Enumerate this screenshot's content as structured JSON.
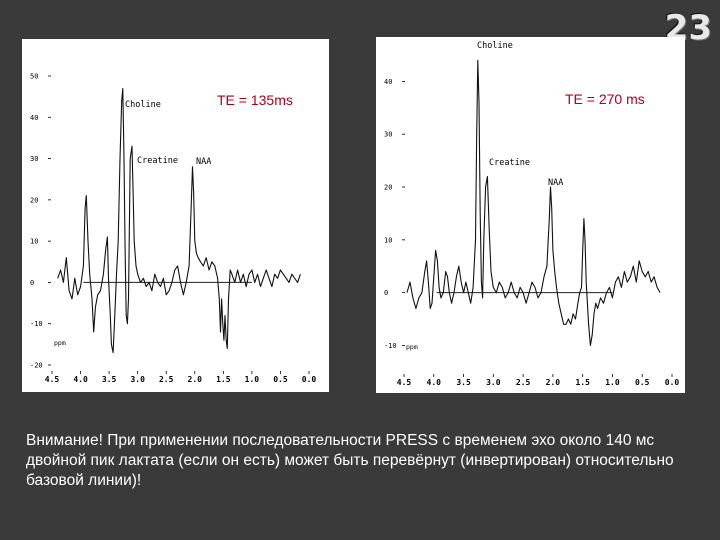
{
  "page_number": "23",
  "note": "Внимание! При применении последовательности PRESS с временем эхо около 140 мс двойной пик лактата (если он есть) может быть перевёрнут (инвертирован) относительно базовой линии)!",
  "chart_data": [
    {
      "type": "line",
      "te_label": "TE = 135ms",
      "unit_label": "ppm",
      "x_ticks": [
        "4.5",
        "4.0",
        "3.5",
        "3.0",
        "2.5",
        "2.0",
        "1.5",
        "1.0",
        "0.5",
        "0.0"
      ],
      "y_ticks": [
        "50",
        "40",
        "30",
        "20",
        "10",
        "0",
        "-10",
        "-20"
      ],
      "xlim": [
        4.5,
        0.0
      ],
      "ylim": [
        -20,
        50
      ],
      "peaks": [
        {
          "label": "Choline",
          "x": 3.22,
          "y": 47
        },
        {
          "label": "Creatine",
          "x": 3.03,
          "y": 33
        },
        {
          "label": "NAA",
          "x": 2.02,
          "y": 28
        }
      ],
      "baseline_y": 0,
      "spectrum": [
        [
          4.4,
          1
        ],
        [
          4.35,
          3
        ],
        [
          4.3,
          0
        ],
        [
          4.25,
          6
        ],
        [
          4.2,
          -2
        ],
        [
          4.15,
          -4
        ],
        [
          4.1,
          1
        ],
        [
          4.05,
          -3
        ],
        [
          4.0,
          -1
        ],
        [
          3.95,
          4
        ],
        [
          3.92,
          18
        ],
        [
          3.9,
          21
        ],
        [
          3.87,
          10
        ],
        [
          3.84,
          2
        ],
        [
          3.8,
          -4
        ],
        [
          3.77,
          -12
        ],
        [
          3.74,
          -6
        ],
        [
          3.7,
          -3
        ],
        [
          3.65,
          -2
        ],
        [
          3.6,
          2
        ],
        [
          3.56,
          8
        ],
        [
          3.53,
          11
        ],
        [
          3.51,
          1
        ],
        [
          3.48,
          -8
        ],
        [
          3.46,
          -15
        ],
        [
          3.43,
          -17
        ],
        [
          3.4,
          -8
        ],
        [
          3.37,
          2
        ],
        [
          3.34,
          10
        ],
        [
          3.31,
          30
        ],
        [
          3.28,
          44
        ],
        [
          3.26,
          47
        ],
        [
          3.24,
          30
        ],
        [
          3.22,
          8
        ],
        [
          3.2,
          -8
        ],
        [
          3.18,
          -10
        ],
        [
          3.16,
          -4
        ],
        [
          3.13,
          30
        ],
        [
          3.1,
          33
        ],
        [
          3.08,
          22
        ],
        [
          3.06,
          10
        ],
        [
          3.03,
          4
        ],
        [
          3.0,
          2
        ],
        [
          2.95,
          0
        ],
        [
          2.9,
          1
        ],
        [
          2.85,
          -1
        ],
        [
          2.8,
          0
        ],
        [
          2.75,
          -2
        ],
        [
          2.7,
          2
        ],
        [
          2.65,
          0
        ],
        [
          2.6,
          -1
        ],
        [
          2.55,
          1
        ],
        [
          2.5,
          -3
        ],
        [
          2.45,
          -2
        ],
        [
          2.4,
          0
        ],
        [
          2.35,
          3
        ],
        [
          2.3,
          4
        ],
        [
          2.25,
          0
        ],
        [
          2.2,
          -3
        ],
        [
          2.15,
          0
        ],
        [
          2.1,
          4
        ],
        [
          2.06,
          20
        ],
        [
          2.04,
          28
        ],
        [
          2.02,
          22
        ],
        [
          2.0,
          10
        ],
        [
          1.97,
          7
        ],
        [
          1.94,
          6
        ],
        [
          1.9,
          5
        ],
        [
          1.85,
          4
        ],
        [
          1.8,
          6
        ],
        [
          1.75,
          3
        ],
        [
          1.7,
          5
        ],
        [
          1.65,
          4
        ],
        [
          1.6,
          1
        ],
        [
          1.57,
          -4
        ],
        [
          1.55,
          -12
        ],
        [
          1.53,
          -4
        ],
        [
          1.51,
          -10
        ],
        [
          1.49,
          -14
        ],
        [
          1.47,
          -8
        ],
        [
          1.45,
          -14
        ],
        [
          1.43,
          -16
        ],
        [
          1.41,
          -4
        ],
        [
          1.38,
          3
        ],
        [
          1.35,
          2
        ],
        [
          1.3,
          0
        ],
        [
          1.25,
          3
        ],
        [
          1.2,
          0
        ],
        [
          1.15,
          2
        ],
        [
          1.1,
          -1
        ],
        [
          1.05,
          2
        ],
        [
          1.0,
          3
        ],
        [
          0.95,
          0
        ],
        [
          0.9,
          2
        ],
        [
          0.85,
          -1
        ],
        [
          0.8,
          1
        ],
        [
          0.75,
          3
        ],
        [
          0.7,
          1
        ],
        [
          0.65,
          -1
        ],
        [
          0.6,
          2
        ],
        [
          0.55,
          1
        ],
        [
          0.5,
          3
        ],
        [
          0.45,
          2
        ],
        [
          0.4,
          1
        ],
        [
          0.35,
          0
        ],
        [
          0.3,
          2
        ],
        [
          0.25,
          1
        ],
        [
          0.2,
          0
        ],
        [
          0.15,
          2
        ]
      ]
    },
    {
      "type": "line",
      "te_label": "TE = 270 ms",
      "unit_label": "ppm",
      "x_ticks": [
        "4.5",
        "4.0",
        "3.5",
        "3.0",
        "2.5",
        "2.0",
        "1.5",
        "1.0",
        "0.5",
        "0.0"
      ],
      "y_ticks": [
        "40",
        "30",
        "20",
        "10",
        "0",
        "-10"
      ],
      "xlim": [
        4.5,
        0.0
      ],
      "ylim": [
        -12,
        45
      ],
      "peaks": [
        {
          "label": "Choline",
          "x": 3.22,
          "y": 44
        },
        {
          "label": "Creatine",
          "x": 3.03,
          "y": 22
        },
        {
          "label": "NAA",
          "x": 2.02,
          "y": 20
        }
      ],
      "baseline_y": 0,
      "spectrum": [
        [
          4.45,
          0
        ],
        [
          4.4,
          2
        ],
        [
          4.35,
          -1
        ],
        [
          4.3,
          -3
        ],
        [
          4.25,
          -1
        ],
        [
          4.2,
          0
        ],
        [
          4.15,
          4
        ],
        [
          4.12,
          6
        ],
        [
          4.09,
          2
        ],
        [
          4.06,
          -3
        ],
        [
          4.03,
          -2
        ],
        [
          4.0,
          3
        ],
        [
          3.97,
          8
        ],
        [
          3.94,
          6
        ],
        [
          3.91,
          1
        ],
        [
          3.88,
          -1
        ],
        [
          3.84,
          0
        ],
        [
          3.8,
          4
        ],
        [
          3.77,
          3
        ],
        [
          3.74,
          0
        ],
        [
          3.7,
          -2
        ],
        [
          3.66,
          0
        ],
        [
          3.62,
          3
        ],
        [
          3.58,
          5
        ],
        [
          3.54,
          2
        ],
        [
          3.5,
          0
        ],
        [
          3.46,
          2
        ],
        [
          3.42,
          0
        ],
        [
          3.38,
          -2
        ],
        [
          3.34,
          1
        ],
        [
          3.3,
          10
        ],
        [
          3.28,
          30
        ],
        [
          3.26,
          44
        ],
        [
          3.24,
          36
        ],
        [
          3.22,
          15
        ],
        [
          3.2,
          2
        ],
        [
          3.18,
          -1
        ],
        [
          3.16,
          10
        ],
        [
          3.13,
          20
        ],
        [
          3.1,
          22
        ],
        [
          3.07,
          12
        ],
        [
          3.04,
          4
        ],
        [
          3.0,
          1
        ],
        [
          2.95,
          0
        ],
        [
          2.9,
          2
        ],
        [
          2.85,
          1
        ],
        [
          2.8,
          -1
        ],
        [
          2.75,
          0
        ],
        [
          2.7,
          2
        ],
        [
          2.65,
          0
        ],
        [
          2.6,
          -1
        ],
        [
          2.55,
          1
        ],
        [
          2.5,
          0
        ],
        [
          2.45,
          -2
        ],
        [
          2.4,
          0
        ],
        [
          2.35,
          2
        ],
        [
          2.3,
          1
        ],
        [
          2.25,
          -1
        ],
        [
          2.2,
          0
        ],
        [
          2.15,
          3
        ],
        [
          2.1,
          5
        ],
        [
          2.06,
          14
        ],
        [
          2.04,
          20
        ],
        [
          2.02,
          16
        ],
        [
          2.0,
          8
        ],
        [
          1.97,
          4
        ],
        [
          1.94,
          1
        ],
        [
          1.9,
          -2
        ],
        [
          1.86,
          -4
        ],
        [
          1.82,
          -6
        ],
        [
          1.78,
          -6
        ],
        [
          1.74,
          -5
        ],
        [
          1.7,
          -6
        ],
        [
          1.66,
          -4
        ],
        [
          1.62,
          -5
        ],
        [
          1.58,
          -2
        ],
        [
          1.55,
          0
        ],
        [
          1.52,
          1
        ],
        [
          1.5,
          8
        ],
        [
          1.48,
          14
        ],
        [
          1.46,
          10
        ],
        [
          1.44,
          2
        ],
        [
          1.42,
          -2
        ],
        [
          1.4,
          -6
        ],
        [
          1.37,
          -10
        ],
        [
          1.34,
          -8
        ],
        [
          1.31,
          -4
        ],
        [
          1.28,
          -2
        ],
        [
          1.25,
          -3
        ],
        [
          1.2,
          -1
        ],
        [
          1.15,
          -2
        ],
        [
          1.1,
          0
        ],
        [
          1.05,
          1
        ],
        [
          1.0,
          -1
        ],
        [
          0.95,
          2
        ],
        [
          0.9,
          3
        ],
        [
          0.85,
          1
        ],
        [
          0.8,
          4
        ],
        [
          0.75,
          2
        ],
        [
          0.7,
          3
        ],
        [
          0.65,
          5
        ],
        [
          0.6,
          2
        ],
        [
          0.55,
          6
        ],
        [
          0.5,
          4
        ],
        [
          0.45,
          3
        ],
        [
          0.4,
          4
        ],
        [
          0.35,
          2
        ],
        [
          0.3,
          3
        ],
        [
          0.25,
          1
        ],
        [
          0.2,
          0
        ]
      ]
    }
  ]
}
